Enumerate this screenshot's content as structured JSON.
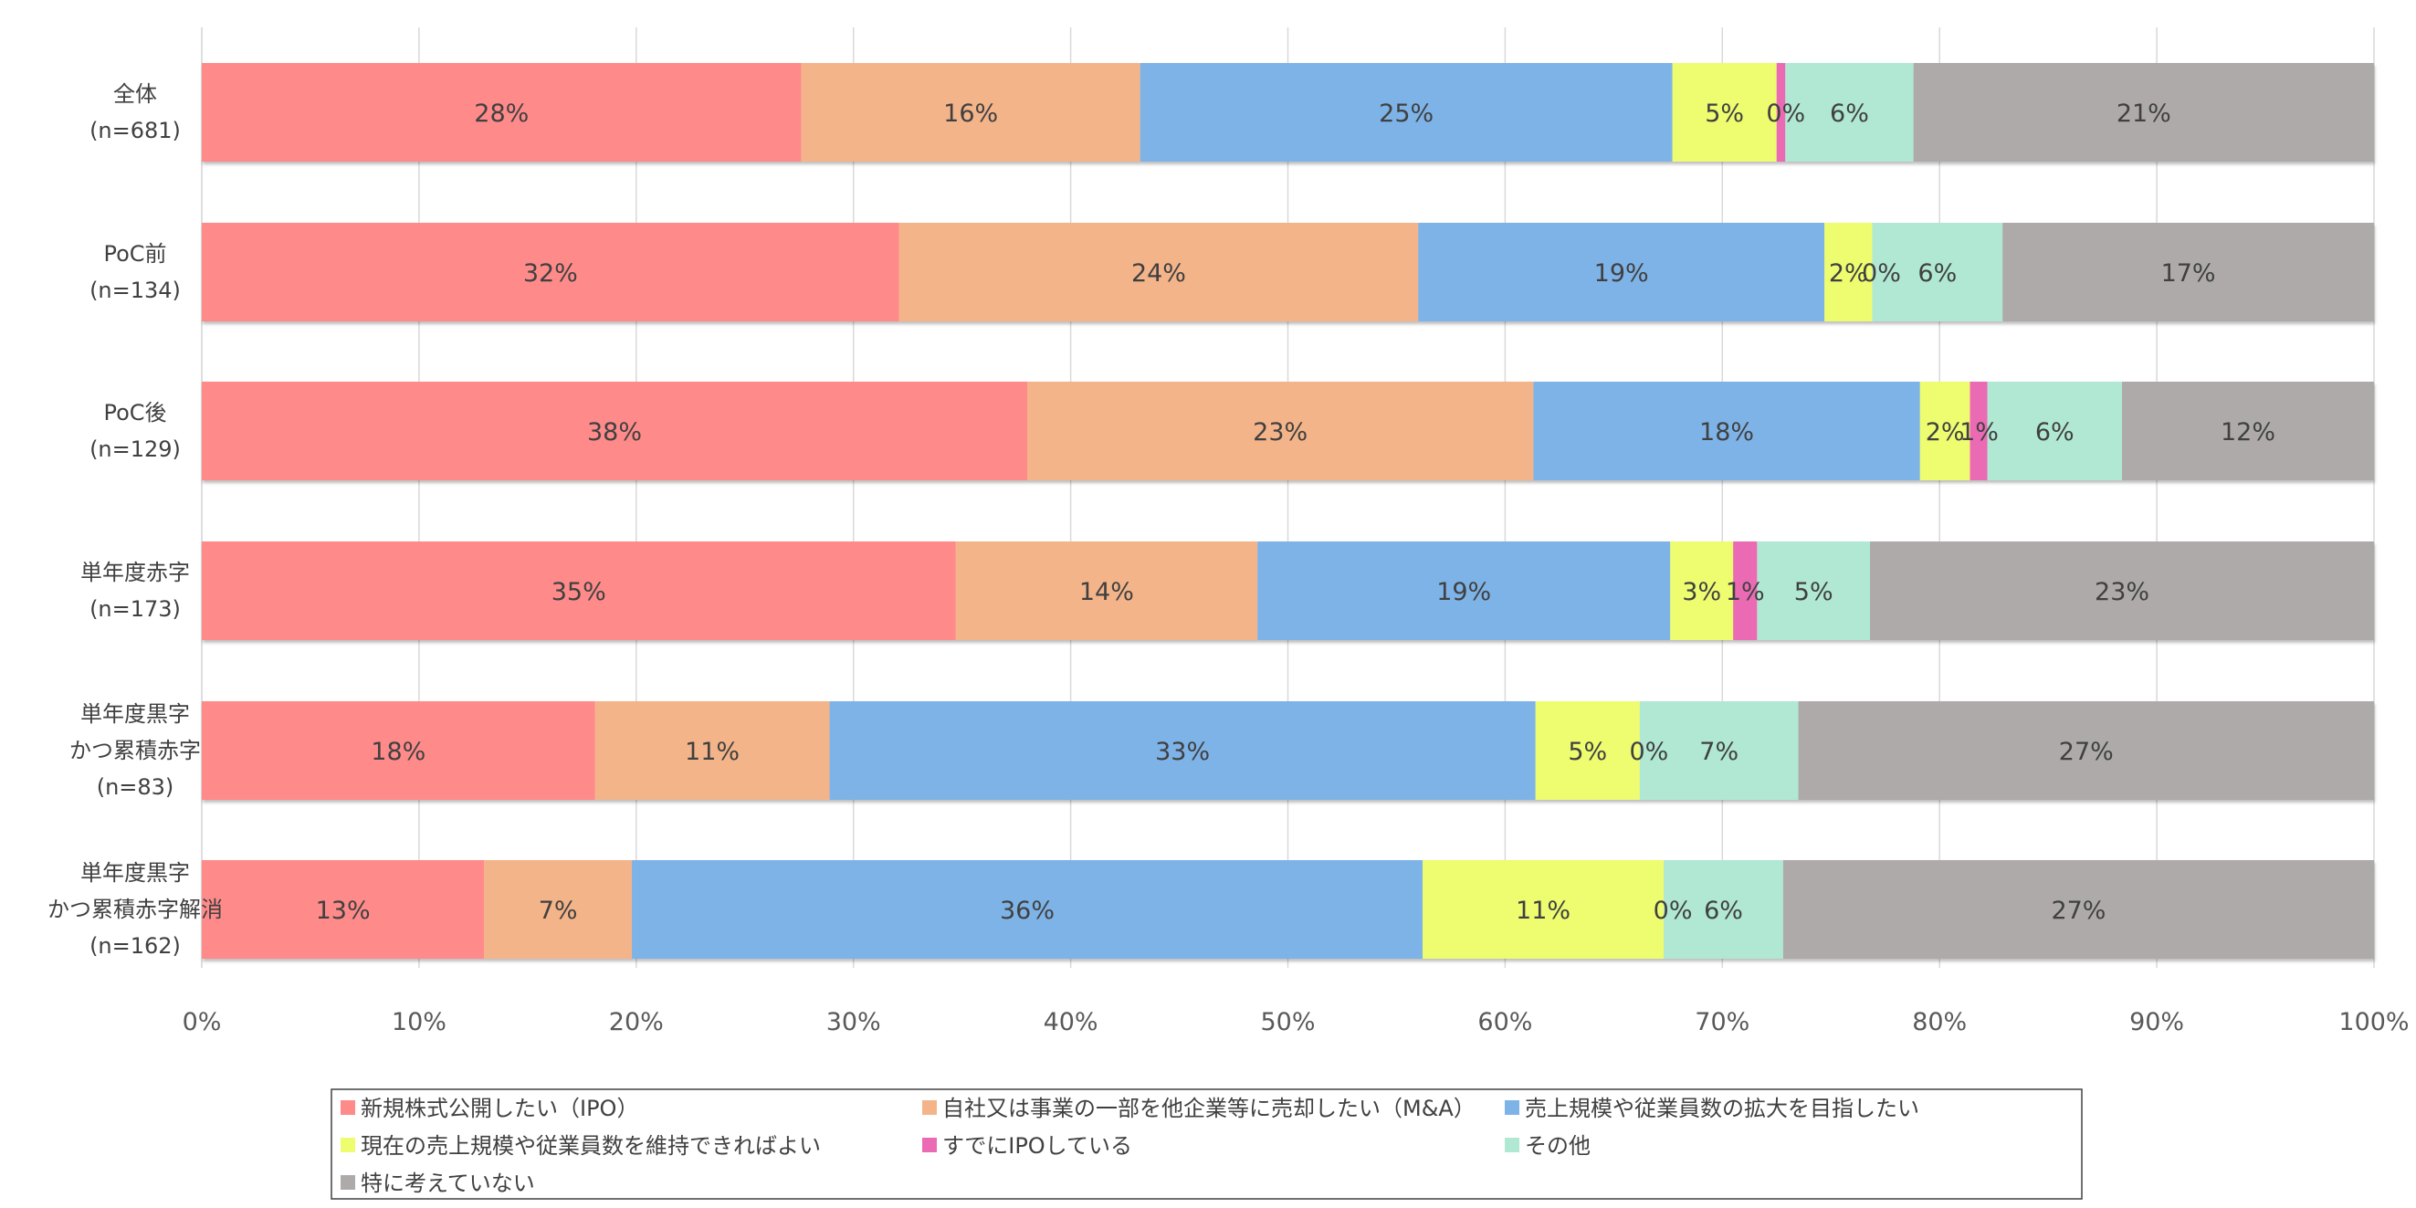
{
  "chart_data": {
    "type": "bar",
    "orientation": "horizontal",
    "stacked": true,
    "percent": true,
    "categories": [
      [
        "全体",
        "(n=681)"
      ],
      [
        "PoC前",
        "(n=134)"
      ],
      [
        "PoC後",
        "(n=129)"
      ],
      [
        "単年度赤字",
        "(n=173)"
      ],
      [
        "単年度黒字",
        "かつ累積赤字",
        "(n=83)"
      ],
      [
        "単年度黒字",
        "かつ累積赤字解消",
        "(n=162)"
      ]
    ],
    "series": [
      {
        "name": "新規株式公開したい（IPO）",
        "color": "#FF8A8A",
        "values": [
          27.6,
          32.1,
          38.0,
          34.7,
          18.1,
          13.0
        ],
        "labels": [
          "28%",
          "32%",
          "38%",
          "35%",
          "18%",
          "13%"
        ]
      },
      {
        "name": "自社又は事業の一部を他企業等に売却したい（M&A）",
        "color": "#F4B48A",
        "values": [
          15.6,
          23.9,
          23.3,
          13.9,
          10.8,
          6.8
        ],
        "labels": [
          "16%",
          "24%",
          "23%",
          "14%",
          "11%",
          "7%"
        ]
      },
      {
        "name": "売上規模や従業員数の拡大を目指したい",
        "color": "#7EB3E8",
        "values": [
          24.5,
          18.7,
          17.8,
          19.0,
          32.5,
          36.4
        ],
        "labels": [
          "25%",
          "19%",
          "18%",
          "19%",
          "33%",
          "36%"
        ]
      },
      {
        "name": "現在の売上規模や従業員数を維持できればよい",
        "color": "#EEFC70",
        "values": [
          4.8,
          2.2,
          2.3,
          2.9,
          4.8,
          11.1
        ],
        "labels": [
          "5%",
          "2%",
          "2%",
          "3%",
          "5%",
          "11%"
        ]
      },
      {
        "name": "すでにIPOしている",
        "color": "#EB6AB4",
        "values": [
          0.4,
          0.0,
          0.8,
          1.1,
          0.0,
          0.0
        ],
        "labels": [
          "0%",
          "0%",
          "1%",
          "1%",
          "0%",
          "0%"
        ]
      },
      {
        "name": "その他",
        "color": "#B0E8D4",
        "values": [
          5.9,
          6.0,
          6.2,
          5.2,
          7.3,
          5.5
        ],
        "labels": [
          "6%",
          "6%",
          "6%",
          "5%",
          "7%",
          "6%"
        ]
      },
      {
        "name": "特に考えていない",
        "color": "#AEAAAA",
        "values": [
          21.2,
          17.1,
          11.6,
          23.2,
          26.5,
          27.2
        ],
        "labels": [
          "21%",
          "17%",
          "12%",
          "23%",
          "27%",
          "27%"
        ]
      }
    ],
    "xlim": [
      0,
      100
    ],
    "xticks": [
      "0%",
      "10%",
      "20%",
      "30%",
      "40%",
      "50%",
      "60%",
      "70%",
      "80%",
      "90%",
      "100%"
    ],
    "legend_position": "bottom",
    "grid": true
  }
}
